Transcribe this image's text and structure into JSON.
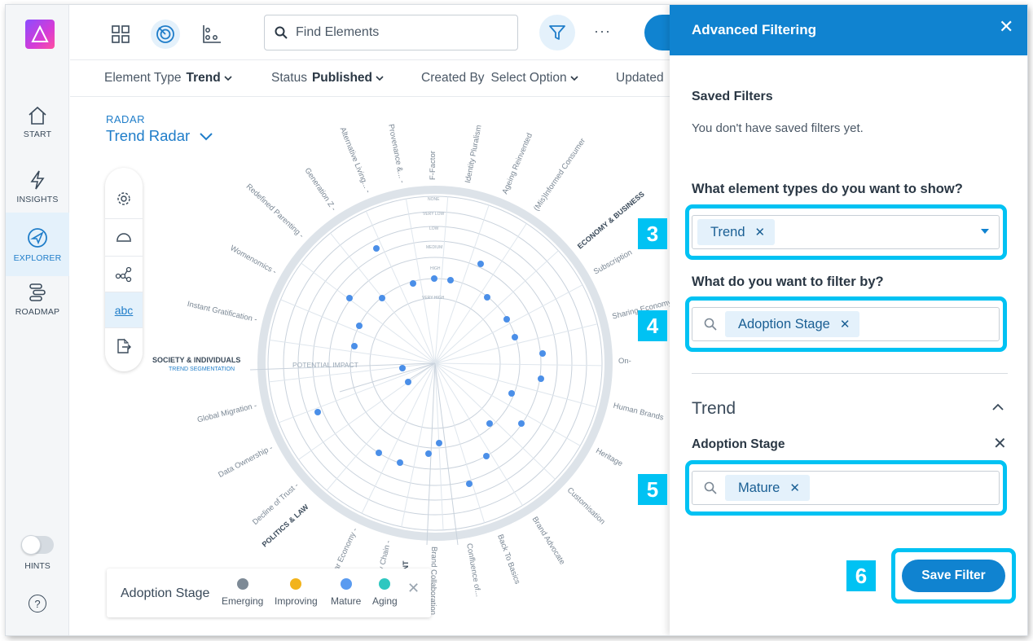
{
  "nav": {
    "items": [
      {
        "label": "START",
        "icon": "home-icon"
      },
      {
        "label": "INSIGHTS",
        "icon": "lightning-icon"
      },
      {
        "label": "EXPLORER",
        "icon": "compass-icon"
      },
      {
        "label": "ROADMAP",
        "icon": "roadmap-icon"
      }
    ],
    "hints_label": "HINTS",
    "help_label": "?"
  },
  "toolbar": {
    "search_placeholder": "Find Elements",
    "more": "···"
  },
  "filters": {
    "element_type_label": "Element Type",
    "element_type_value": "Trend",
    "status_label": "Status",
    "status_value": "Published",
    "created_by_label": "Created By",
    "created_by_value": "Select Option",
    "updated_label": "Updated"
  },
  "radar": {
    "kicker": "RADAR",
    "title": "Trend Radar",
    "center_label": "POTENTIAL IMPACT",
    "ring_labels": [
      "NONE",
      "VERY LOW",
      "LOW",
      "MEDIUM",
      "HIGH",
      "VERY HIGH"
    ],
    "segments": [
      "ECONOMY & BUSINESS",
      "SOCIETY & INDIVIDUALS",
      "TREND SEGMENTATION",
      "POLITICS & LAW",
      "MENT"
    ],
    "trends": [
      "Alternative Living...",
      "Provenance &...",
      "F-Factor",
      "Identity Pluralism",
      "Ageing Reinvented",
      "(Mis)Informed Consumer",
      "Generation Z",
      "Redefined Parenting",
      "Womenomics",
      "Instant Gratification",
      "Subscription",
      "Sharing Economy",
      "On-",
      "Human Brands",
      "Heritage",
      "Customisation",
      "Brand Advocate",
      "Back To Basics",
      "Confluence of...",
      "Brand Collaboration",
      "Global Migration",
      "Data Ownership",
      "Decline of Trust",
      "Circular Economy",
      "ply Chain"
    ]
  },
  "tools": {
    "text_tool": "abc"
  },
  "legend": {
    "title": "Adoption Stage",
    "items": [
      {
        "label": "Emerging",
        "color": "#7d8a96"
      },
      {
        "label": "Improving",
        "color": "#f2b31b"
      },
      {
        "label": "Mature",
        "color": "#5a9bf0"
      },
      {
        "label": "Aging",
        "color": "#2ec7c0"
      }
    ]
  },
  "drawer": {
    "title": "Advanced Filtering",
    "saved_title": "Saved Filters",
    "saved_note": "You don't have saved filters yet.",
    "q_types": "What element types do you want to show?",
    "types_chip": "Trend",
    "q_filter_by": "What do you want to filter by?",
    "filter_by_chip": "Adoption Stage",
    "section": "Trend",
    "sub_title": "Adoption Stage",
    "adoption_chip": "Mature",
    "save_label": "Save Filter"
  },
  "steps": [
    "3",
    "4",
    "5",
    "6"
  ],
  "colors": {
    "accent": "#1083d0",
    "highlight": "#00c2f3",
    "radar_dot": "#4b8fe8"
  }
}
